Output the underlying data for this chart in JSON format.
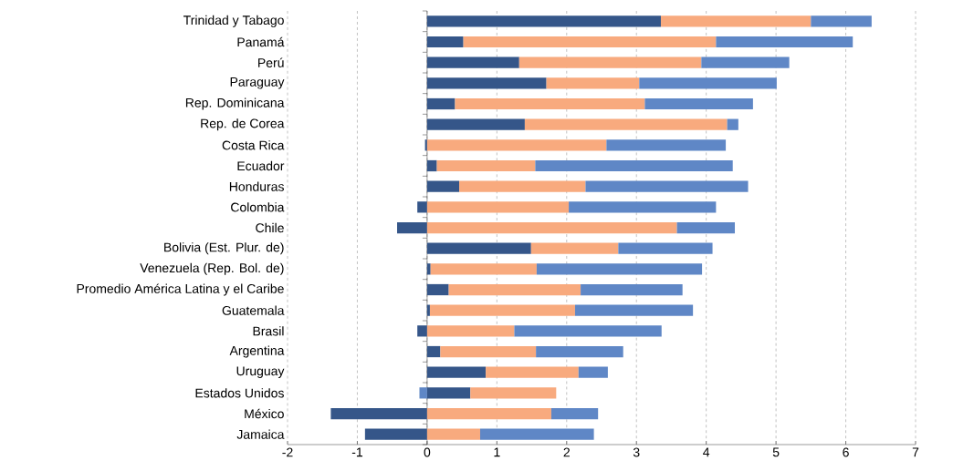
{
  "chart_data": {
    "type": "bar",
    "orientation": "horizontal",
    "stacked": true,
    "grid": "x",
    "categories": [
      "Trinidad y Tabago",
      "Panamá",
      "Perú",
      "Paraguay",
      "Rep. Dominicana",
      "Rep. de Corea",
      "Costa Rica",
      "Ecuador",
      "Honduras",
      "Colombia",
      "Chile",
      "Bolivia (Est. Plur. de)",
      "Venezuela (Rep. Bol. de)",
      "Promedio América Latina y el Caribe",
      "Guatemala",
      "Brasil",
      "Argentina",
      "Uruguay",
      "Estados Unidos",
      "México",
      "Jamaica"
    ],
    "series": [
      {
        "color": "#355689",
        "values": [
          3.35,
          0.52,
          1.32,
          1.71,
          0.4,
          1.4,
          -0.03,
          0.14,
          0.46,
          -0.14,
          -0.43,
          1.49,
          0.05,
          0.31,
          0.04,
          -0.14,
          0.19,
          0.84,
          0.62,
          -1.38,
          -0.89
        ]
      },
      {
        "color": "#f8aa7e",
        "values": [
          2.15,
          3.62,
          2.61,
          1.33,
          2.72,
          2.9,
          2.57,
          1.41,
          1.81,
          2.03,
          3.58,
          1.25,
          1.52,
          1.89,
          2.08,
          1.25,
          1.37,
          1.33,
          1.23,
          1.78,
          0.76
        ]
      },
      {
        "color": "#5f87c6",
        "values": [
          0.87,
          1.96,
          1.26,
          1.97,
          1.55,
          0.16,
          1.71,
          2.83,
          2.33,
          2.11,
          0.83,
          1.35,
          2.37,
          1.46,
          1.69,
          2.11,
          1.25,
          0.42,
          -0.11,
          0.67,
          1.63
        ]
      }
    ],
    "ref_lines": [
      {
        "axis": "x",
        "value": 0,
        "color": "#000000"
      }
    ],
    "xlim": [
      -2,
      7
    ],
    "xticks": [
      -2,
      -1,
      0,
      1,
      2,
      3,
      4,
      5,
      6,
      7
    ]
  }
}
